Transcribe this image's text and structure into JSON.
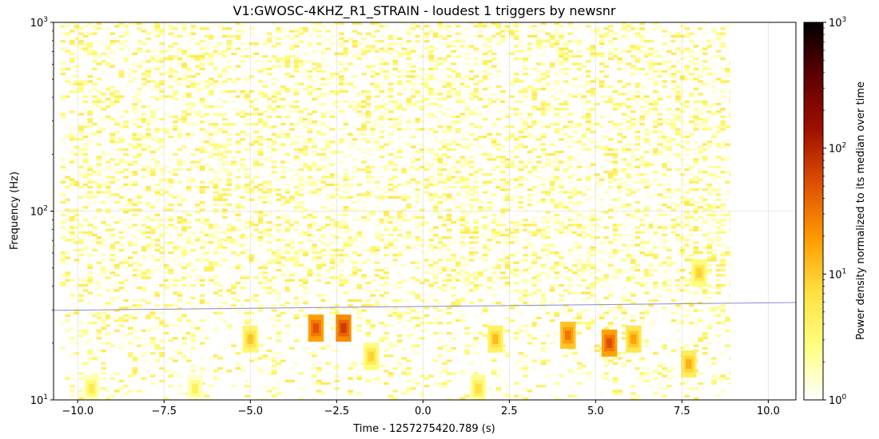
{
  "chart_data": {
    "type": "heatmap",
    "title": "V1:GWOSC-4KHZ_R1_STRAIN - loudest 1 triggers by newsnr",
    "xlabel": "Time - 1257275420.789 (s)",
    "ylabel": "Frequency (Hz)",
    "xlim": [
      -10.7,
      10.8
    ],
    "ylim": [
      10,
      1000
    ],
    "yscale": "log",
    "grid": true,
    "x_ticks": [
      {
        "value": -10,
        "label": "−10.0"
      },
      {
        "value": -7.5,
        "label": "−7.5"
      },
      {
        "value": -5,
        "label": "−5.0"
      },
      {
        "value": -2.5,
        "label": "−2.5"
      },
      {
        "value": 0,
        "label": "0.0"
      },
      {
        "value": 2.5,
        "label": "2.5"
      },
      {
        "value": 5,
        "label": "5.0"
      },
      {
        "value": 7.5,
        "label": "7.5"
      },
      {
        "value": 10,
        "label": "10.0"
      }
    ],
    "y_ticks": [
      {
        "value": 10,
        "base": "10",
        "exp": "1"
      },
      {
        "value": 100,
        "base": "10",
        "exp": "2"
      },
      {
        "value": 1000,
        "base": "10",
        "exp": "3"
      }
    ],
    "data_extent": {
      "t_start": -10.5,
      "t_end": 8.9,
      "f_min": 10,
      "f_max": 1000
    },
    "hot_spots": [
      {
        "t": -9.6,
        "f": 11.5,
        "power": 3
      },
      {
        "t": -6.6,
        "f": 11.5,
        "power": 2.5
      },
      {
        "t": -5.0,
        "f": 21,
        "power": 6
      },
      {
        "t": -3.1,
        "f": 24,
        "power": 30
      },
      {
        "t": -2.3,
        "f": 24,
        "power": 40
      },
      {
        "t": -1.5,
        "f": 17,
        "power": 5
      },
      {
        "t": 1.6,
        "f": 11.5,
        "power": 4
      },
      {
        "t": 2.1,
        "f": 21,
        "power": 7
      },
      {
        "t": 4.2,
        "f": 22,
        "power": 18
      },
      {
        "t": 5.4,
        "f": 20,
        "power": 30
      },
      {
        "t": 6.1,
        "f": 21,
        "power": 10
      },
      {
        "t": 7.7,
        "f": 15.5,
        "power": 8
      },
      {
        "t": 8.0,
        "f": 47,
        "power": 5
      }
    ],
    "track_line": {
      "color": "#8888dd",
      "points": [
        {
          "t": -10.7,
          "f": 29.8
        },
        {
          "t": 10.8,
          "f": 32.8
        }
      ]
    },
    "colorbar": {
      "label": "Power density normalized to its median over time",
      "scale": "log",
      "range": [
        1,
        1000
      ],
      "colormap": "afmhot_r",
      "stops": [
        "#ffffff",
        "#ffff80",
        "#ffe040",
        "#ff9a00",
        "#e05000",
        "#a01000",
        "#600000",
        "#000000"
      ],
      "ticks": [
        {
          "value": 1,
          "base": "10",
          "exp": "0"
        },
        {
          "value": 10,
          "base": "10",
          "exp": "1"
        },
        {
          "value": 100,
          "base": "10",
          "exp": "2"
        },
        {
          "value": 1000,
          "base": "10",
          "exp": "3"
        }
      ]
    }
  }
}
